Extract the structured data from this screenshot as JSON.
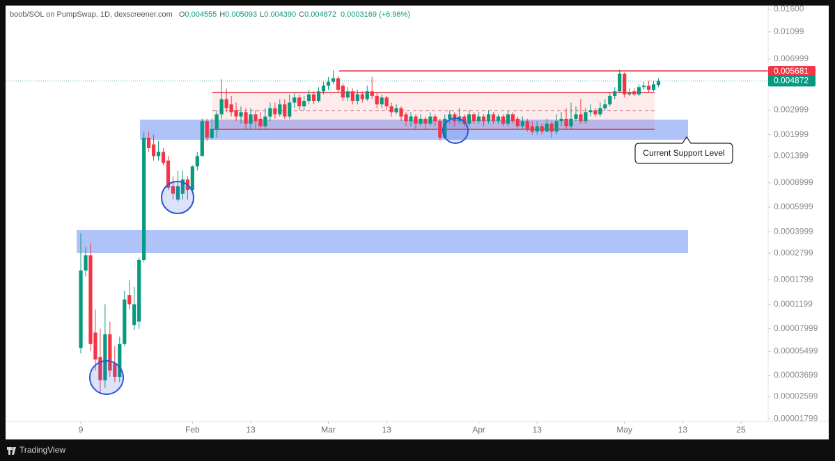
{
  "chart_data": {
    "type": "candlestick",
    "header": {
      "symbol": "boob/SOL on PumpSwap, 1D, dexscreener.com",
      "ohlc": [
        {
          "label": "O",
          "value": "0.004555"
        },
        {
          "label": "H",
          "value": "0.005093"
        },
        {
          "label": "L",
          "value": "0.004390"
        },
        {
          "label": "C",
          "value": "0.004872"
        }
      ],
      "change": "0.0003169 (+6.96%)"
    },
    "annotation": "Current Support Level",
    "footer": "TradingView",
    "log_scale": true,
    "grid": false,
    "up_color": "#089981",
    "down_color": "#f23645",
    "xlim": [
      -6.5,
      150.6
    ],
    "xticks": [
      {
        "value": 9,
        "label": "9"
      },
      {
        "value": 32,
        "label": "Feb"
      },
      {
        "value": 44,
        "label": "13"
      },
      {
        "value": 60,
        "label": "Mar"
      },
      {
        "value": 72,
        "label": "13"
      },
      {
        "value": 91,
        "label": "Apr"
      },
      {
        "value": 103,
        "label": "13"
      },
      {
        "value": 121,
        "label": "May"
      },
      {
        "value": 133,
        "label": "13"
      },
      {
        "value": 145,
        "label": "25"
      }
    ],
    "ylim": [
      1.72e-05,
      0.017
    ],
    "yticks": [
      {
        "value": 0.016,
        "label": "0.01600"
      },
      0.01099,
      0.006999,
      0.002999,
      0.001999,
      0.001399,
      0.0008999,
      0.0005999,
      0.0003999,
      0.0002799,
      0.0001799,
      0.0001199,
      7.999e-05,
      5.499e-05,
      3.699e-05,
      2.599e-05,
      1.799e-05
    ],
    "price_labels": [
      {
        "value": 0.005681,
        "color": "#f23645"
      },
      {
        "value": 0.004872,
        "color": "#089981"
      }
    ],
    "x": [
      9,
      10,
      11,
      12,
      13,
      14,
      15,
      16,
      17,
      18,
      19,
      20,
      21,
      22,
      23,
      24,
      25,
      26,
      27,
      28,
      29,
      30,
      31,
      32,
      33,
      34,
      35,
      36,
      37,
      38,
      39,
      40,
      41,
      42,
      43,
      44,
      45,
      46,
      47,
      48,
      49,
      50,
      51,
      52,
      53,
      54,
      55,
      56,
      57,
      58,
      59,
      60,
      61,
      62,
      63,
      64,
      65,
      66,
      67,
      68,
      69,
      70,
      71,
      72,
      73,
      74,
      75,
      76,
      77,
      78,
      79,
      80,
      81,
      82,
      83,
      84,
      85,
      86,
      87,
      88,
      89,
      90,
      91,
      92,
      93,
      94,
      95,
      96,
      97,
      98,
      99,
      100,
      101,
      102,
      103,
      104,
      105,
      106,
      107,
      108,
      109,
      110,
      111,
      112,
      113,
      114,
      115,
      116,
      117,
      118,
      119,
      120,
      121,
      122,
      123,
      124,
      125,
      126,
      127,
      128
    ],
    "open": [
      5.8e-05,
      0.00021,
      0.00027,
      7.5e-05,
      5e-05,
      3.4e-05,
      7.3e-05,
      4.5e-05,
      3.6e-05,
      6.2e-05,
      0.00014,
      8.5e-05,
      9e-05,
      0.00025,
      0.0019,
      0.0017,
      0.0014,
      0.0015,
      0.0013,
      0.00085,
      0.00068,
      0.00075,
      0.00095,
      0.0008,
      0.00118,
      0.0014,
      0.0025,
      0.0019,
      0.0022,
      0.0028,
      0.0036,
      0.0033,
      0.003,
      0.0027,
      0.0029,
      0.0024,
      0.0028,
      0.0026,
      0.0023,
      0.0027,
      0.0031,
      0.0028,
      0.0033,
      0.0027,
      0.0034,
      0.0037,
      0.0032,
      0.0035,
      0.0039,
      0.0035,
      0.0041,
      0.0045,
      0.0048,
      0.0051,
      0.0045,
      0.0037,
      0.0041,
      0.0035,
      0.0039,
      0.0036,
      0.0041,
      0.0038,
      0.0033,
      0.0037,
      0.0032,
      0.0029,
      0.0031,
      0.0028,
      0.0025,
      0.0027,
      0.0024,
      0.0026,
      0.0024,
      0.0027,
      0.0025,
      0.0019,
      0.0026,
      0.0028,
      0.0025,
      0.0027,
      0.0024,
      0.0028,
      0.0025,
      0.0027,
      0.0025,
      0.0028,
      0.0025,
      0.0027,
      0.0024,
      0.0028,
      0.0026,
      0.0023,
      0.0025,
      0.0023,
      0.0021,
      0.0023,
      0.0021,
      0.0024,
      0.0021,
      0.0025,
      0.0026,
      0.0023,
      0.0026,
      0.0028,
      0.0025,
      0.0029,
      0.003,
      0.0028,
      0.0031,
      0.0033,
      0.0038,
      0.0041,
      0.0055,
      0.0039,
      0.0041,
      0.0039,
      0.0044,
      0.0045,
      0.0042,
      0.004555
    ],
    "high": [
      0.00039,
      0.00031,
      0.00033,
      0.00011,
      8e-05,
      0.00012,
      9e-05,
      6e-05,
      7e-05,
      0.00015,
      0.00018,
      0.00016,
      0.00026,
      0.0021,
      0.0021,
      0.002,
      0.0018,
      0.0016,
      0.0014,
      0.001,
      0.0011,
      0.0011,
      0.001,
      0.0012,
      0.0015,
      0.0026,
      0.0026,
      0.0026,
      0.003,
      0.005,
      0.0043,
      0.0038,
      0.0034,
      0.0032,
      0.0031,
      0.0031,
      0.003,
      0.0029,
      0.0031,
      0.0034,
      0.0034,
      0.0036,
      0.0036,
      0.0039,
      0.004,
      0.0039,
      0.0038,
      0.0042,
      0.0041,
      0.0044,
      0.0048,
      0.0052,
      0.0058,
      0.0053,
      0.0047,
      0.0044,
      0.0043,
      0.0042,
      0.0041,
      0.0045,
      0.0052,
      0.004,
      0.0039,
      0.0038,
      0.0034,
      0.0033,
      0.0032,
      0.0029,
      0.0029,
      0.0028,
      0.0028,
      0.0027,
      0.0029,
      0.0028,
      0.0026,
      0.0028,
      0.003,
      0.0029,
      0.0031,
      0.0028,
      0.003,
      0.0029,
      0.0029,
      0.0028,
      0.003,
      0.0029,
      0.0028,
      0.0028,
      0.003,
      0.0029,
      0.0027,
      0.0027,
      0.0026,
      0.0025,
      0.0025,
      0.0024,
      0.0026,
      0.0025,
      0.0028,
      0.0029,
      0.0031,
      0.0034,
      0.0032,
      0.0036,
      0.0031,
      0.0033,
      0.0031,
      0.0034,
      0.0036,
      0.004,
      0.0044,
      0.0059,
      0.0056,
      0.0043,
      0.0043,
      0.0046,
      0.0048,
      0.0049,
      0.0049,
      0.005093
    ],
    "low": [
      5.3e-05,
      0.00019,
      5.5e-05,
      4e-05,
      2.7e-05,
      3e-05,
      3.6e-05,
      3.3e-05,
      3.3e-05,
      6e-05,
      0.00011,
      7.8e-05,
      8e-05,
      0.00024,
      0.0015,
      0.0013,
      0.0013,
      0.0012,
      0.0008,
      0.00068,
      0.00066,
      0.00068,
      0.00068,
      0.00078,
      0.0011,
      0.0014,
      0.0018,
      0.00185,
      0.0019,
      0.0026,
      0.0029,
      0.0027,
      0.0025,
      0.0024,
      0.0022,
      0.0022,
      0.0022,
      0.0022,
      0.0022,
      0.0025,
      0.0026,
      0.0027,
      0.0026,
      0.0026,
      0.0031,
      0.003,
      0.003,
      0.0033,
      0.0033,
      0.0034,
      0.0039,
      0.0042,
      0.0046,
      0.004,
      0.0035,
      0.0035,
      0.0033,
      0.0033,
      0.0034,
      0.0035,
      0.0036,
      0.0031,
      0.0031,
      0.003,
      0.0027,
      0.0028,
      0.0025,
      0.0023,
      0.0023,
      0.0022,
      0.0023,
      0.0022,
      0.0023,
      0.0023,
      0.0018,
      0.0019,
      0.0024,
      0.0023,
      0.0024,
      0.0023,
      0.0023,
      0.0024,
      0.0024,
      0.0023,
      0.0024,
      0.0024,
      0.0024,
      0.0023,
      0.0023,
      0.0024,
      0.0022,
      0.0022,
      0.0021,
      0.002,
      0.002,
      0.002,
      0.0021,
      0.0019,
      0.002,
      0.0023,
      0.0022,
      0.0022,
      0.0025,
      0.0024,
      0.0024,
      0.0027,
      0.0027,
      0.0027,
      0.003,
      0.0032,
      0.0036,
      0.004,
      0.0037,
      0.0038,
      0.0038,
      0.0038,
      0.0042,
      0.004,
      0.0041,
      0.00439
    ],
    "close": [
      0.00021,
      0.00027,
      6.2e-05,
      4.8e-05,
      3.4e-05,
      7.3e-05,
      4e-05,
      3.6e-05,
      6.2e-05,
      0.00013,
      0.00012,
      0.00012,
      0.00025,
      0.0019,
      0.0016,
      0.0014,
      0.0015,
      0.00125,
      0.00083,
      0.00075,
      0.00085,
      0.00095,
      0.0008,
      0.00118,
      0.0014,
      0.0025,
      0.0019,
      0.0022,
      0.0028,
      0.0036,
      0.0031,
      0.0029,
      0.0027,
      0.0029,
      0.0024,
      0.0028,
      0.0025,
      0.0023,
      0.0027,
      0.0031,
      0.0028,
      0.0033,
      0.0027,
      0.0034,
      0.0037,
      0.0032,
      0.0035,
      0.0039,
      0.0035,
      0.0041,
      0.0045,
      0.0048,
      0.0051,
      0.0042,
      0.0037,
      0.0041,
      0.0035,
      0.0039,
      0.0036,
      0.0041,
      0.0038,
      0.0033,
      0.0037,
      0.0032,
      0.0029,
      0.0031,
      0.0027,
      0.0025,
      0.0027,
      0.0024,
      0.0026,
      0.0024,
      0.0027,
      0.0025,
      0.0019,
      0.0026,
      0.0028,
      0.0025,
      0.0027,
      0.0024,
      0.0028,
      0.0025,
      0.0027,
      0.0025,
      0.0028,
      0.0025,
      0.0027,
      0.0024,
      0.0028,
      0.0025,
      0.0023,
      0.0025,
      0.0022,
      0.0021,
      0.0023,
      0.0021,
      0.0024,
      0.0021,
      0.0025,
      0.0026,
      0.0023,
      0.0026,
      0.0028,
      0.0025,
      0.0029,
      0.003,
      0.0028,
      0.0031,
      0.0033,
      0.0038,
      0.0041,
      0.0055,
      0.0039,
      0.004,
      0.0039,
      0.0044,
      0.0045,
      0.0042,
      0.0046,
      0.004872
    ]
  }
}
